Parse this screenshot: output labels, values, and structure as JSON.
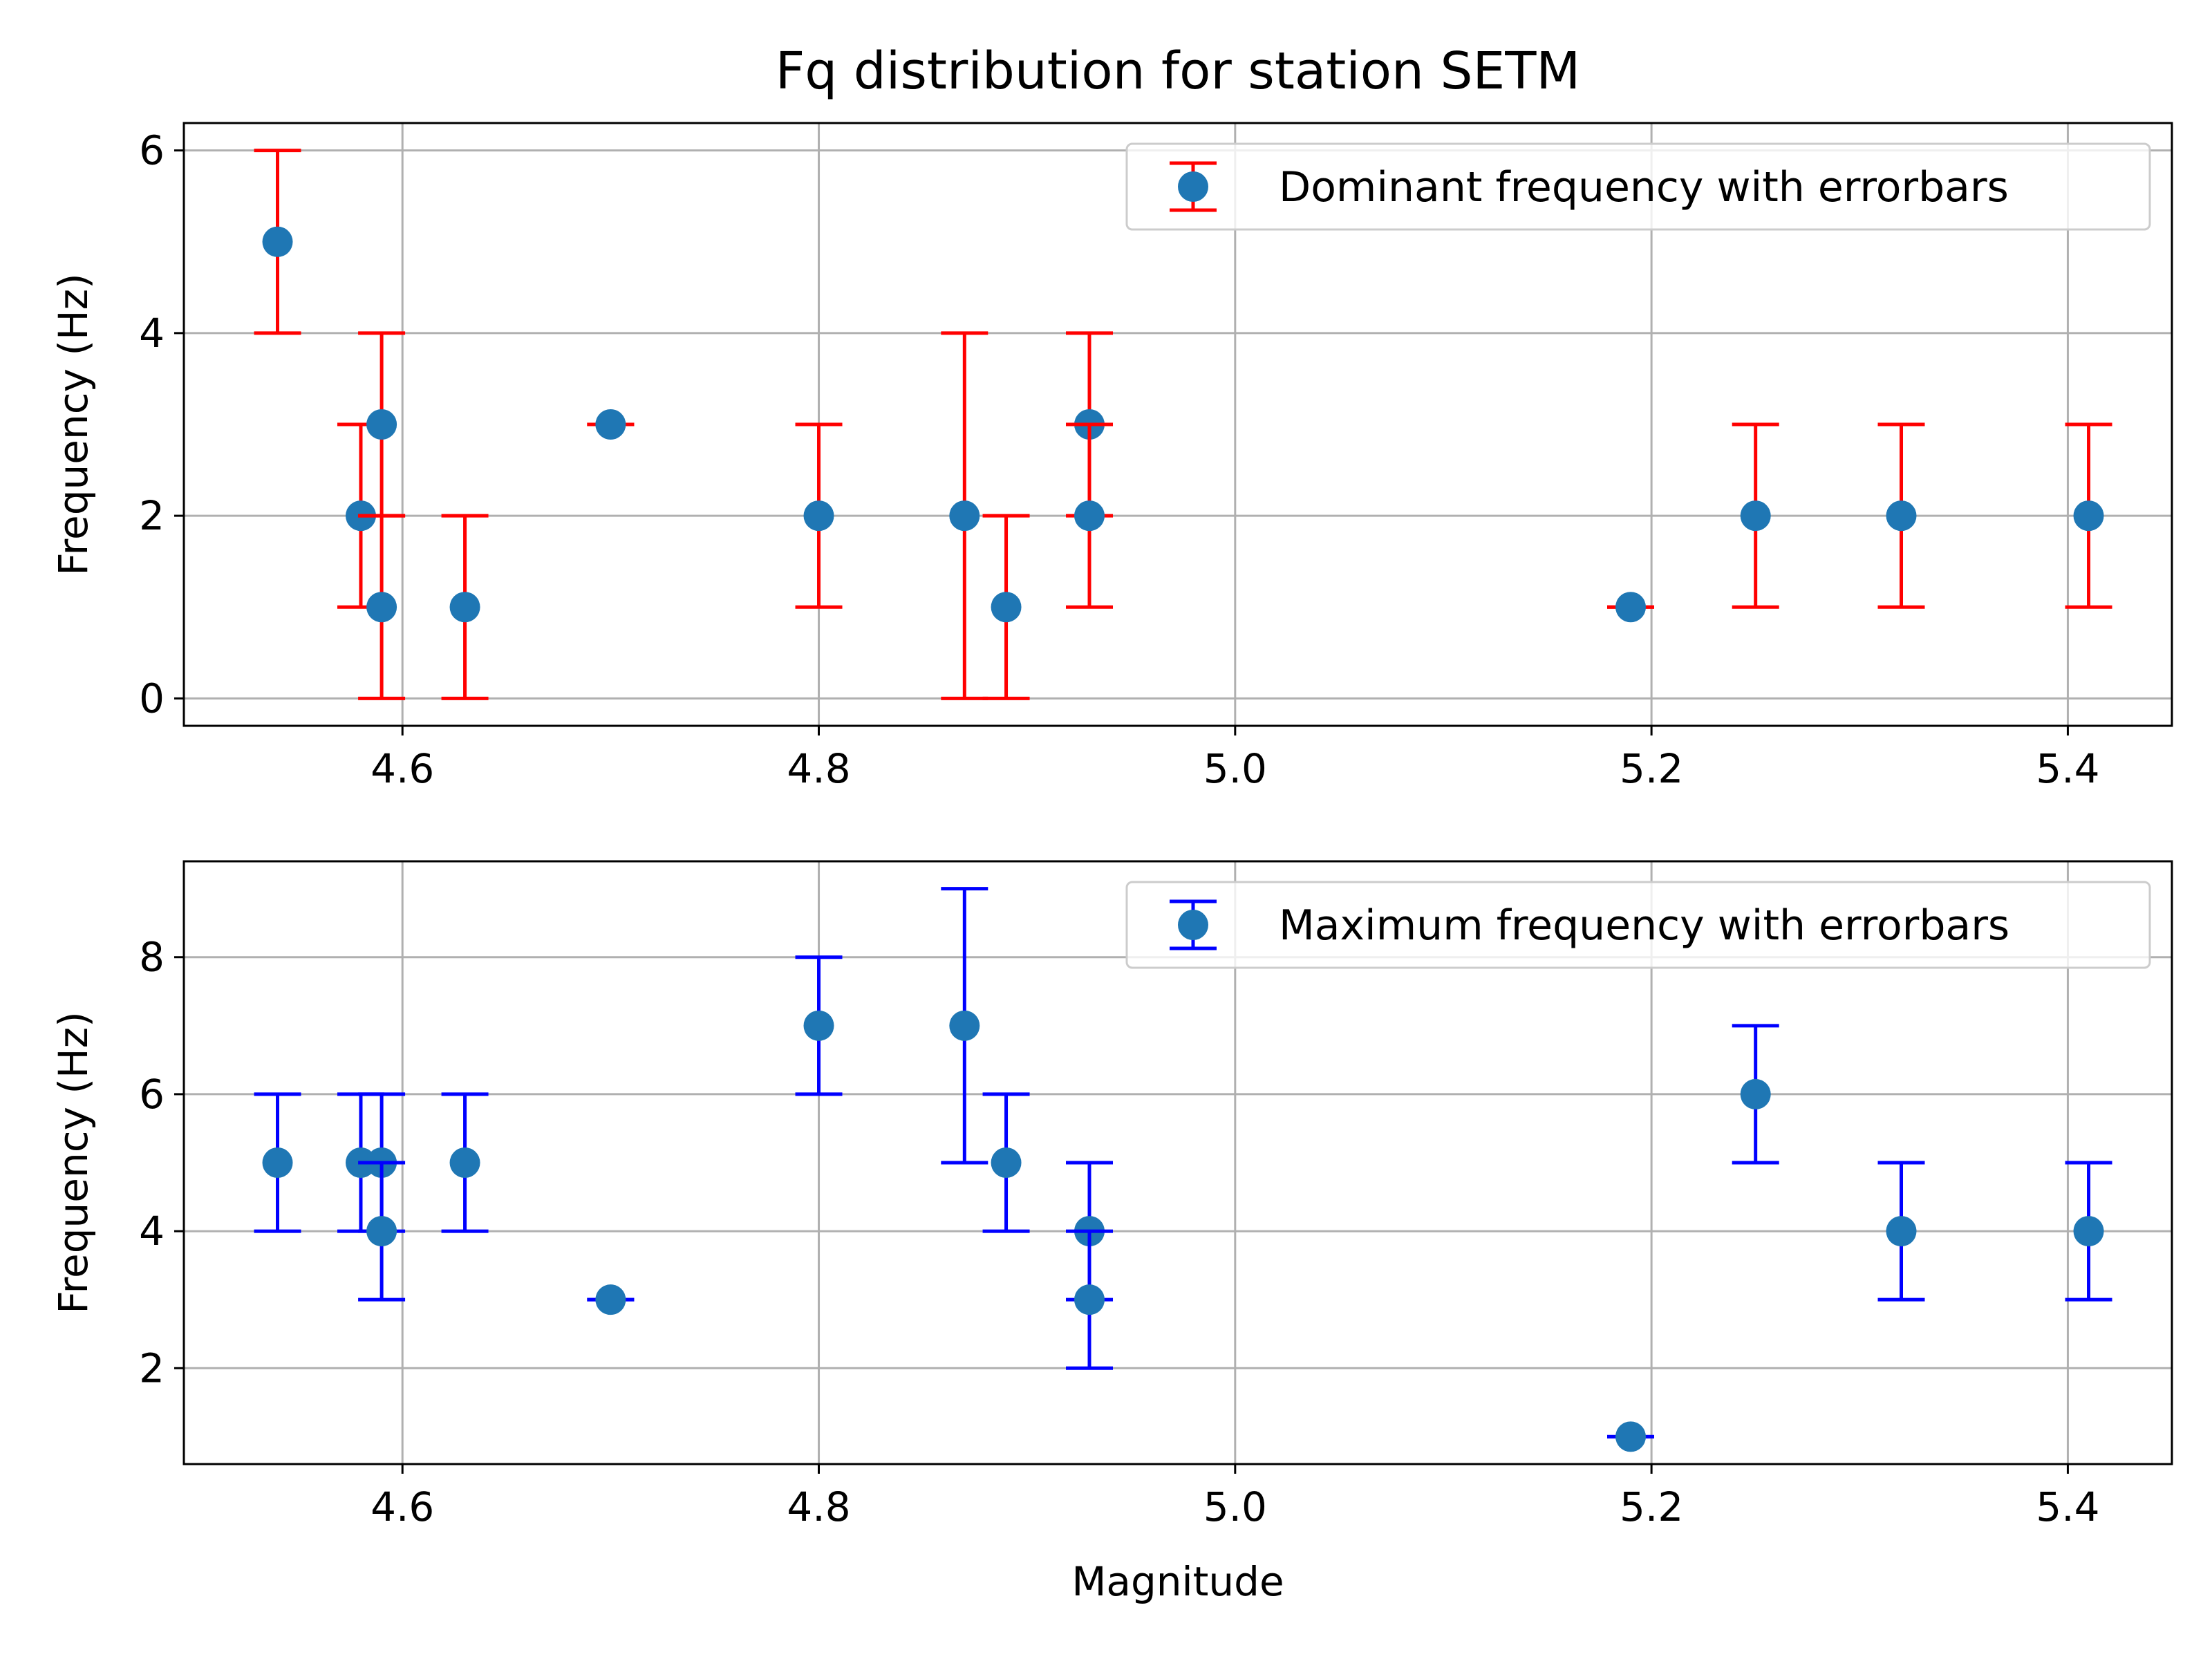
{
  "figure_title": "Fq distribution for station SETM",
  "chart_data": [
    {
      "type": "scatter",
      "title": "Fq distribution for station SETM",
      "xlabel": "",
      "ylabel": "Frequency (Hz)",
      "xlim": [
        4.495,
        5.45
      ],
      "ylim": [
        -0.3,
        6.3
      ],
      "xticks": [
        "4.6",
        "4.8",
        "5.0",
        "5.2",
        "5.4"
      ],
      "yticks": [
        "0",
        "2",
        "4",
        "6"
      ],
      "grid": true,
      "legend_position": "top-right",
      "errorbar_color": "#ff0000",
      "marker_color": "#1f77b4",
      "series": [
        {
          "name": "Dominant frequency with errorbars",
          "points": [
            {
              "x": 4.54,
              "y": 5,
              "ylow": 4,
              "yhigh": 6
            },
            {
              "x": 4.58,
              "y": 2,
              "ylow": 1,
              "yhigh": 3
            },
            {
              "x": 4.59,
              "y": 3,
              "ylow": 2,
              "yhigh": 4
            },
            {
              "x": 4.59,
              "y": 1,
              "ylow": 0,
              "yhigh": 2
            },
            {
              "x": 4.63,
              "y": 1,
              "ylow": 0,
              "yhigh": 2
            },
            {
              "x": 4.7,
              "y": 3,
              "ylow": 3,
              "yhigh": 3
            },
            {
              "x": 4.8,
              "y": 2,
              "ylow": 1,
              "yhigh": 3
            },
            {
              "x": 4.87,
              "y": 2,
              "ylow": 0,
              "yhigh": 4
            },
            {
              "x": 4.89,
              "y": 1,
              "ylow": 0,
              "yhigh": 2
            },
            {
              "x": 4.93,
              "y": 3,
              "ylow": 2,
              "yhigh": 4
            },
            {
              "x": 4.93,
              "y": 2,
              "ylow": 1,
              "yhigh": 3
            },
            {
              "x": 5.19,
              "y": 1,
              "ylow": 1,
              "yhigh": 1
            },
            {
              "x": 5.25,
              "y": 2,
              "ylow": 1,
              "yhigh": 3
            },
            {
              "x": 5.32,
              "y": 2,
              "ylow": 1,
              "yhigh": 3
            },
            {
              "x": 5.41,
              "y": 2,
              "ylow": 1,
              "yhigh": 3
            }
          ]
        }
      ]
    },
    {
      "type": "scatter",
      "xlabel": "Magnitude",
      "ylabel": "Frequency (Hz)",
      "xlim": [
        4.495,
        5.45
      ],
      "ylim": [
        0.6,
        9.4
      ],
      "xticks": [
        "4.6",
        "4.8",
        "5.0",
        "5.2",
        "5.4"
      ],
      "yticks": [
        "2",
        "4",
        "6",
        "8"
      ],
      "grid": true,
      "legend_position": "top-right",
      "errorbar_color": "#0000ff",
      "marker_color": "#1f77b4",
      "series": [
        {
          "name": "Maximum frequency with errorbars",
          "points": [
            {
              "x": 4.54,
              "y": 5,
              "ylow": 4,
              "yhigh": 6
            },
            {
              "x": 4.58,
              "y": 5,
              "ylow": 4,
              "yhigh": 6
            },
            {
              "x": 4.59,
              "y": 5,
              "ylow": 4,
              "yhigh": 6
            },
            {
              "x": 4.59,
              "y": 4,
              "ylow": 3,
              "yhigh": 5
            },
            {
              "x": 4.63,
              "y": 5,
              "ylow": 4,
              "yhigh": 6
            },
            {
              "x": 4.7,
              "y": 3,
              "ylow": 3,
              "yhigh": 3
            },
            {
              "x": 4.8,
              "y": 7,
              "ylow": 6,
              "yhigh": 8
            },
            {
              "x": 4.87,
              "y": 7,
              "ylow": 5,
              "yhigh": 9
            },
            {
              "x": 4.89,
              "y": 5,
              "ylow": 4,
              "yhigh": 6
            },
            {
              "x": 4.93,
              "y": 4,
              "ylow": 3,
              "yhigh": 5
            },
            {
              "x": 4.93,
              "y": 3,
              "ylow": 2,
              "yhigh": 4
            },
            {
              "x": 5.19,
              "y": 1,
              "ylow": 1,
              "yhigh": 1
            },
            {
              "x": 5.25,
              "y": 6,
              "ylow": 5,
              "yhigh": 7
            },
            {
              "x": 5.32,
              "y": 4,
              "ylow": 3,
              "yhigh": 5
            },
            {
              "x": 5.41,
              "y": 4,
              "ylow": 3,
              "yhigh": 5
            }
          ]
        }
      ]
    }
  ]
}
